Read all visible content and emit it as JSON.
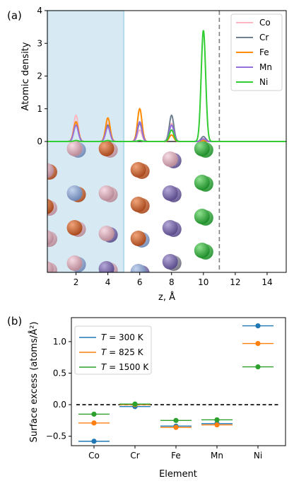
{
  "chart_data": [
    {
      "panel_label": "(a)",
      "type": "line",
      "xlabel": "z, Å",
      "ylabel": "Atomic density",
      "xlim": [
        0.2,
        15.2
      ],
      "ylim": [
        0,
        4
      ],
      "xticks": [
        2,
        4,
        6,
        8,
        10,
        12,
        14
      ],
      "yticks": [
        0,
        1,
        2,
        3,
        4
      ],
      "shaded_region_z": [
        0.2,
        5.0
      ],
      "dashed_vline_z": 11.0,
      "peak_sigma": 0.14,
      "legend": {
        "placement": "top-right"
      },
      "series": [
        {
          "name": "Co",
          "color": "#ffb6c1",
          "peaks": [
            [
              2,
              0.8
            ],
            [
              4,
              0.55
            ],
            [
              6,
              0.35
            ],
            [
              8,
              0.55
            ],
            [
              10,
              0.05
            ]
          ]
        },
        {
          "name": "Cr",
          "color": "#708090",
          "peaks": [
            [
              2,
              0.6
            ],
            [
              4,
              0.5
            ],
            [
              6,
              0.55
            ],
            [
              8,
              0.8
            ],
            [
              10,
              0.15
            ]
          ]
        },
        {
          "name": "Fe",
          "color": "#ff8c00",
          "peaks": [
            [
              2,
              0.6
            ],
            [
              4,
              0.72
            ],
            [
              6,
              1.0
            ],
            [
              8,
              0.2
            ],
            [
              10,
              0.03
            ]
          ]
        },
        {
          "name": "Mn",
          "color": "#9370db",
          "peaks": [
            [
              2,
              0.5
            ],
            [
              4,
              0.45
            ],
            [
              6,
              0.6
            ],
            [
              8,
              0.5
            ],
            [
              10,
              0.08
            ]
          ]
        },
        {
          "name": "Ni",
          "color": "#32cd32",
          "peaks": [
            [
              2,
              0.03
            ],
            [
              4,
              0.03
            ],
            [
              6,
              0.03
            ],
            [
              8,
              0.35
            ],
            [
              10,
              3.4
            ]
          ]
        }
      ],
      "atom_columns_z": [
        0.2,
        2,
        4,
        6,
        8,
        10
      ]
    },
    {
      "panel_label": "(b)",
      "type": "scatter",
      "xlabel": "Element",
      "ylabel": "Surface excess (atoms/Å²)",
      "categories": [
        "Co",
        "Cr",
        "Fe",
        "Mn",
        "Ni"
      ],
      "ylim": [
        -0.65,
        1.38
      ],
      "yticks": [
        -0.5,
        0.0,
        0.5,
        1.0
      ],
      "ytick_labels": [
        "−0.5",
        "0.0",
        "0.5",
        "1.0"
      ],
      "reference_line_y": 0,
      "legend": {
        "placement": "top-left",
        "prefix": "T",
        "suffix": " K"
      },
      "series": [
        {
          "name": "T = 300 K",
          "temperature": "300",
          "color": "#1f77b4",
          "values": [
            -0.58,
            -0.03,
            -0.34,
            -0.3,
            1.25
          ]
        },
        {
          "name": "T = 825 K",
          "temperature": "825",
          "color": "#ff7f0e",
          "values": [
            -0.29,
            0.0,
            -0.36,
            -0.32,
            0.97
          ]
        },
        {
          "name": "T = 1500 K",
          "temperature": "1500",
          "color": "#2ca02c",
          "values": [
            -0.15,
            0.01,
            -0.25,
            -0.24,
            0.6
          ]
        }
      ]
    }
  ]
}
